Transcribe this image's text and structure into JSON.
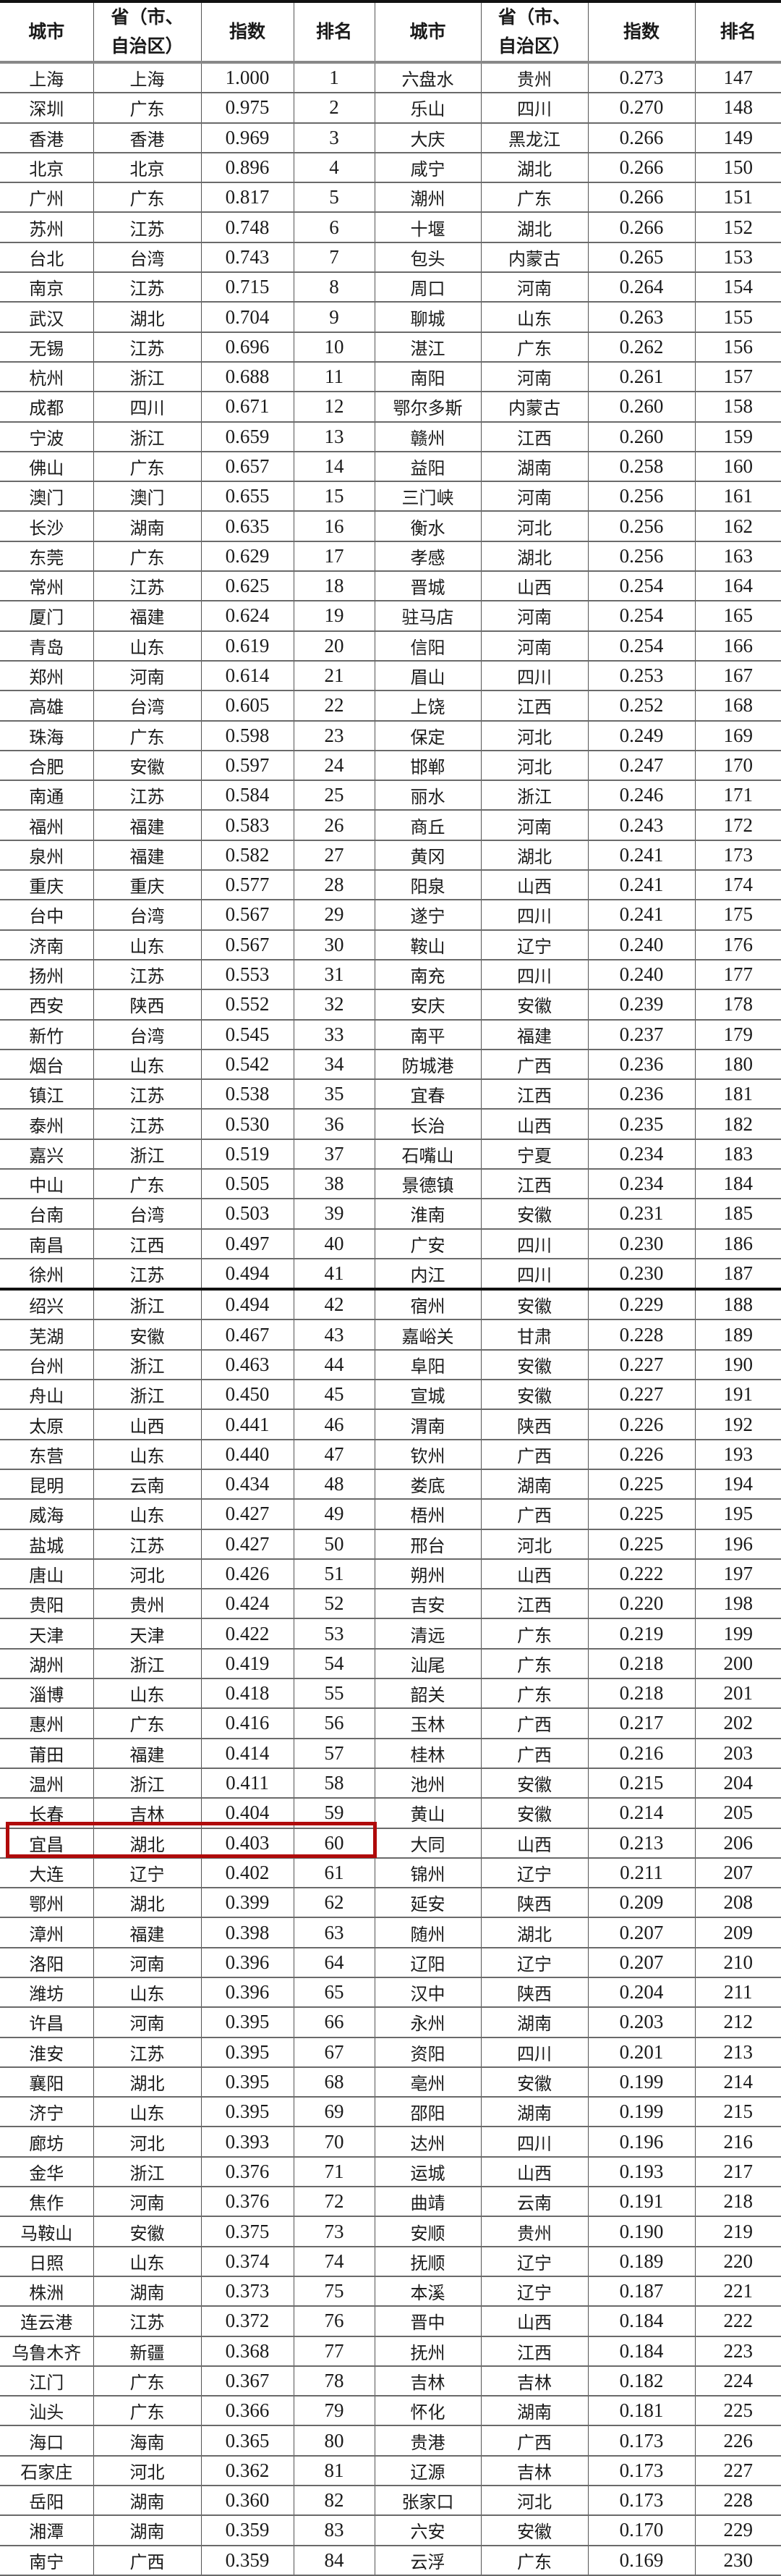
{
  "headers": [
    "城市",
    "省（市、自治区）",
    "指数",
    "排名",
    "城市",
    "省（市、自治区）",
    "指数",
    "排名"
  ],
  "highlight_color": "#b00a0a",
  "highlighted_rank": 60,
  "rows": [
    [
      "上海",
      "上海",
      "1.000",
      "1",
      "六盘水",
      "贵州",
      "0.273",
      "147"
    ],
    [
      "深圳",
      "广东",
      "0.975",
      "2",
      "乐山",
      "四川",
      "0.270",
      "148"
    ],
    [
      "香港",
      "香港",
      "0.969",
      "3",
      "大庆",
      "黑龙江",
      "0.266",
      "149"
    ],
    [
      "北京",
      "北京",
      "0.896",
      "4",
      "咸宁",
      "湖北",
      "0.266",
      "150"
    ],
    [
      "广州",
      "广东",
      "0.817",
      "5",
      "潮州",
      "广东",
      "0.266",
      "151"
    ],
    [
      "苏州",
      "江苏",
      "0.748",
      "6",
      "十堰",
      "湖北",
      "0.266",
      "152"
    ],
    [
      "台北",
      "台湾",
      "0.743",
      "7",
      "包头",
      "内蒙古",
      "0.265",
      "153"
    ],
    [
      "南京",
      "江苏",
      "0.715",
      "8",
      "周口",
      "河南",
      "0.264",
      "154"
    ],
    [
      "武汉",
      "湖北",
      "0.704",
      "9",
      "聊城",
      "山东",
      "0.263",
      "155"
    ],
    [
      "无锡",
      "江苏",
      "0.696",
      "10",
      "湛江",
      "广东",
      "0.262",
      "156"
    ],
    [
      "杭州",
      "浙江",
      "0.688",
      "11",
      "南阳",
      "河南",
      "0.261",
      "157"
    ],
    [
      "成都",
      "四川",
      "0.671",
      "12",
      "鄂尔多斯",
      "内蒙古",
      "0.260",
      "158"
    ],
    [
      "宁波",
      "浙江",
      "0.659",
      "13",
      "赣州",
      "江西",
      "0.260",
      "159"
    ],
    [
      "佛山",
      "广东",
      "0.657",
      "14",
      "益阳",
      "湖南",
      "0.258",
      "160"
    ],
    [
      "澳门",
      "澳门",
      "0.655",
      "15",
      "三门峡",
      "河南",
      "0.256",
      "161"
    ],
    [
      "长沙",
      "湖南",
      "0.635",
      "16",
      "衡水",
      "河北",
      "0.256",
      "162"
    ],
    [
      "东莞",
      "广东",
      "0.629",
      "17",
      "孝感",
      "湖北",
      "0.256",
      "163"
    ],
    [
      "常州",
      "江苏",
      "0.625",
      "18",
      "晋城",
      "山西",
      "0.254",
      "164"
    ],
    [
      "厦门",
      "福建",
      "0.624",
      "19",
      "驻马店",
      "河南",
      "0.254",
      "165"
    ],
    [
      "青岛",
      "山东",
      "0.619",
      "20",
      "信阳",
      "河南",
      "0.254",
      "166"
    ],
    [
      "郑州",
      "河南",
      "0.614",
      "21",
      "眉山",
      "四川",
      "0.253",
      "167"
    ],
    [
      "高雄",
      "台湾",
      "0.605",
      "22",
      "上饶",
      "江西",
      "0.252",
      "168"
    ],
    [
      "珠海",
      "广东",
      "0.598",
      "23",
      "保定",
      "河北",
      "0.249",
      "169"
    ],
    [
      "合肥",
      "安徽",
      "0.597",
      "24",
      "邯郸",
      "河北",
      "0.247",
      "170"
    ],
    [
      "南通",
      "江苏",
      "0.584",
      "25",
      "丽水",
      "浙江",
      "0.246",
      "171"
    ],
    [
      "福州",
      "福建",
      "0.583",
      "26",
      "商丘",
      "河南",
      "0.243",
      "172"
    ],
    [
      "泉州",
      "福建",
      "0.582",
      "27",
      "黄冈",
      "湖北",
      "0.241",
      "173"
    ],
    [
      "重庆",
      "重庆",
      "0.577",
      "28",
      "阳泉",
      "山西",
      "0.241",
      "174"
    ],
    [
      "台中",
      "台湾",
      "0.567",
      "29",
      "遂宁",
      "四川",
      "0.241",
      "175"
    ],
    [
      "济南",
      "山东",
      "0.567",
      "30",
      "鞍山",
      "辽宁",
      "0.240",
      "176"
    ],
    [
      "扬州",
      "江苏",
      "0.553",
      "31",
      "南充",
      "四川",
      "0.240",
      "177"
    ],
    [
      "西安",
      "陕西",
      "0.552",
      "32",
      "安庆",
      "安徽",
      "0.239",
      "178"
    ],
    [
      "新竹",
      "台湾",
      "0.545",
      "33",
      "南平",
      "福建",
      "0.237",
      "179"
    ],
    [
      "烟台",
      "山东",
      "0.542",
      "34",
      "防城港",
      "广西",
      "0.236",
      "180"
    ],
    [
      "镇江",
      "江苏",
      "0.538",
      "35",
      "宜春",
      "江西",
      "0.236",
      "181"
    ],
    [
      "泰州",
      "江苏",
      "0.530",
      "36",
      "长治",
      "山西",
      "0.235",
      "182"
    ],
    [
      "嘉兴",
      "浙江",
      "0.519",
      "37",
      "石嘴山",
      "宁夏",
      "0.234",
      "183"
    ],
    [
      "中山",
      "广东",
      "0.505",
      "38",
      "景德镇",
      "江西",
      "0.234",
      "184"
    ],
    [
      "台南",
      "台湾",
      "0.503",
      "39",
      "淮南",
      "安徽",
      "0.231",
      "185"
    ],
    [
      "南昌",
      "江西",
      "0.497",
      "40",
      "广安",
      "四川",
      "0.230",
      "186"
    ],
    [
      "徐州",
      "江苏",
      "0.494",
      "41",
      "内江",
      "四川",
      "0.230",
      "187"
    ],
    [
      "绍兴",
      "浙江",
      "0.494",
      "42",
      "宿州",
      "安徽",
      "0.229",
      "188"
    ],
    [
      "芜湖",
      "安徽",
      "0.467",
      "43",
      "嘉峪关",
      "甘肃",
      "0.228",
      "189"
    ],
    [
      "台州",
      "浙江",
      "0.463",
      "44",
      "阜阳",
      "安徽",
      "0.227",
      "190"
    ],
    [
      "舟山",
      "浙江",
      "0.450",
      "45",
      "宣城",
      "安徽",
      "0.227",
      "191"
    ],
    [
      "太原",
      "山西",
      "0.441",
      "46",
      "渭南",
      "陕西",
      "0.226",
      "192"
    ],
    [
      "东营",
      "山东",
      "0.440",
      "47",
      "钦州",
      "广西",
      "0.226",
      "193"
    ],
    [
      "昆明",
      "云南",
      "0.434",
      "48",
      "娄底",
      "湖南",
      "0.225",
      "194"
    ],
    [
      "威海",
      "山东",
      "0.427",
      "49",
      "梧州",
      "广西",
      "0.225",
      "195"
    ],
    [
      "盐城",
      "江苏",
      "0.427",
      "50",
      "邢台",
      "河北",
      "0.225",
      "196"
    ],
    [
      "唐山",
      "河北",
      "0.426",
      "51",
      "朔州",
      "山西",
      "0.222",
      "197"
    ],
    [
      "贵阳",
      "贵州",
      "0.424",
      "52",
      "吉安",
      "江西",
      "0.220",
      "198"
    ],
    [
      "天津",
      "天津",
      "0.422",
      "53",
      "清远",
      "广东",
      "0.219",
      "199"
    ],
    [
      "湖州",
      "浙江",
      "0.419",
      "54",
      "汕尾",
      "广东",
      "0.218",
      "200"
    ],
    [
      "淄博",
      "山东",
      "0.418",
      "55",
      "韶关",
      "广东",
      "0.218",
      "201"
    ],
    [
      "惠州",
      "广东",
      "0.416",
      "56",
      "玉林",
      "广西",
      "0.217",
      "202"
    ],
    [
      "莆田",
      "福建",
      "0.414",
      "57",
      "桂林",
      "广西",
      "0.216",
      "203"
    ],
    [
      "温州",
      "浙江",
      "0.411",
      "58",
      "池州",
      "安徽",
      "0.215",
      "204"
    ],
    [
      "长春",
      "吉林",
      "0.404",
      "59",
      "黄山",
      "安徽",
      "0.214",
      "205"
    ],
    [
      "宜昌",
      "湖北",
      "0.403",
      "60",
      "大同",
      "山西",
      "0.213",
      "206"
    ],
    [
      "大连",
      "辽宁",
      "0.402",
      "61",
      "锦州",
      "辽宁",
      "0.211",
      "207"
    ],
    [
      "鄂州",
      "湖北",
      "0.399",
      "62",
      "延安",
      "陕西",
      "0.209",
      "208"
    ],
    [
      "漳州",
      "福建",
      "0.398",
      "63",
      "随州",
      "湖北",
      "0.207",
      "209"
    ],
    [
      "洛阳",
      "河南",
      "0.396",
      "64",
      "辽阳",
      "辽宁",
      "0.207",
      "210"
    ],
    [
      "潍坊",
      "山东",
      "0.396",
      "65",
      "汉中",
      "陕西",
      "0.204",
      "211"
    ],
    [
      "许昌",
      "河南",
      "0.395",
      "66",
      "永州",
      "湖南",
      "0.203",
      "212"
    ],
    [
      "淮安",
      "江苏",
      "0.395",
      "67",
      "资阳",
      "四川",
      "0.201",
      "213"
    ],
    [
      "襄阳",
      "湖北",
      "0.395",
      "68",
      "亳州",
      "安徽",
      "0.199",
      "214"
    ],
    [
      "济宁",
      "山东",
      "0.395",
      "69",
      "邵阳",
      "湖南",
      "0.199",
      "215"
    ],
    [
      "廊坊",
      "河北",
      "0.393",
      "70",
      "达州",
      "四川",
      "0.196",
      "216"
    ],
    [
      "金华",
      "浙江",
      "0.376",
      "71",
      "运城",
      "山西",
      "0.193",
      "217"
    ],
    [
      "焦作",
      "河南",
      "0.376",
      "72",
      "曲靖",
      "云南",
      "0.191",
      "218"
    ],
    [
      "马鞍山",
      "安徽",
      "0.375",
      "73",
      "安顺",
      "贵州",
      "0.190",
      "219"
    ],
    [
      "日照",
      "山东",
      "0.374",
      "74",
      "抚顺",
      "辽宁",
      "0.189",
      "220"
    ],
    [
      "株洲",
      "湖南",
      "0.373",
      "75",
      "本溪",
      "辽宁",
      "0.187",
      "221"
    ],
    [
      "连云港",
      "江苏",
      "0.372",
      "76",
      "晋中",
      "山西",
      "0.184",
      "222"
    ],
    [
      "乌鲁木齐",
      "新疆",
      "0.368",
      "77",
      "抚州",
      "江西",
      "0.184",
      "223"
    ],
    [
      "江门",
      "广东",
      "0.367",
      "78",
      "吉林",
      "吉林",
      "0.182",
      "224"
    ],
    [
      "汕头",
      "广东",
      "0.366",
      "79",
      "怀化",
      "湖南",
      "0.181",
      "225"
    ],
    [
      "海口",
      "海南",
      "0.365",
      "80",
      "贵港",
      "广西",
      "0.173",
      "226"
    ],
    [
      "石家庄",
      "河北",
      "0.362",
      "81",
      "辽源",
      "吉林",
      "0.173",
      "227"
    ],
    [
      "岳阳",
      "湖南",
      "0.360",
      "82",
      "张家口",
      "河北",
      "0.173",
      "228"
    ],
    [
      "湘潭",
      "湖南",
      "0.359",
      "83",
      "六安",
      "安徽",
      "0.170",
      "229"
    ],
    [
      "南宁",
      "广西",
      "0.359",
      "84",
      "云浮",
      "广东",
      "0.169",
      "230"
    ]
  ]
}
